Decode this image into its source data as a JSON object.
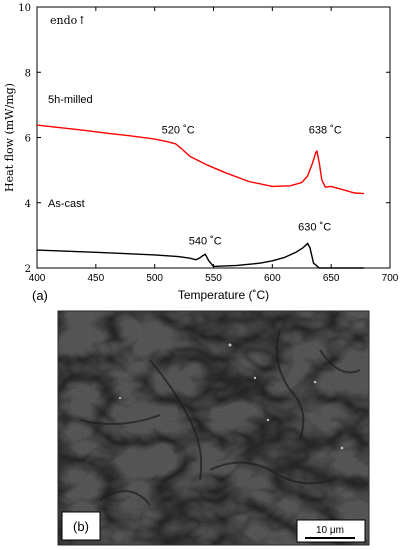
{
  "chart_data": {
    "type": "line",
    "panel_label": "(a)",
    "xlabel": "Temperature (˚C)",
    "ylabel": "Heat flow (mW/mg)",
    "corner_label": "endo↑",
    "xlim": [
      400,
      700
    ],
    "ylim": [
      2,
      10
    ],
    "xticks": [
      400,
      450,
      500,
      550,
      600,
      650,
      700
    ],
    "yticks": [
      2,
      4,
      6,
      8,
      10
    ],
    "series": [
      {
        "name": "5h-milled",
        "color": "#ff0000",
        "x": [
          400,
          420,
          440,
          460,
          480,
          500,
          510,
          518,
          522,
          530,
          545,
          560,
          580,
          600,
          615,
          625,
          630,
          634,
          637,
          638,
          640,
          642,
          645,
          650,
          660,
          670,
          678
        ],
        "y": [
          6.38,
          6.3,
          6.22,
          6.13,
          6.05,
          5.95,
          5.88,
          5.8,
          5.68,
          5.42,
          5.15,
          4.92,
          4.65,
          4.5,
          4.52,
          4.62,
          4.82,
          5.2,
          5.55,
          5.58,
          5.2,
          4.7,
          4.48,
          4.5,
          4.4,
          4.3,
          4.28
        ]
      },
      {
        "name": "As-cast",
        "color": "#000000",
        "x": [
          400,
          450,
          500,
          520,
          530,
          535,
          538,
          541,
          543,
          546,
          550,
          570,
          590,
          600,
          610,
          620,
          626,
          630,
          632,
          635,
          640,
          650,
          660,
          670,
          678
        ],
        "y": [
          2.55,
          2.48,
          2.4,
          2.35,
          2.3,
          2.25,
          2.3,
          2.38,
          2.42,
          2.22,
          2.05,
          2.08,
          2.15,
          2.22,
          2.32,
          2.48,
          2.62,
          2.75,
          2.62,
          2.15,
          2.0,
          2.0,
          2.0,
          2.0,
          2.0
        ]
      }
    ],
    "annotations": [
      {
        "text": "520 ˚C",
        "x": 520,
        "y": 6.12
      },
      {
        "text": "638 ˚C",
        "x": 645,
        "y": 6.12
      },
      {
        "text": "540 ˚C",
        "x": 543,
        "y": 2.72
      },
      {
        "text": "630 ˚C",
        "x": 636,
        "y": 3.15
      }
    ]
  },
  "micrograph": {
    "panel_label": "(b)",
    "scale_bar_label": "10 μm"
  }
}
